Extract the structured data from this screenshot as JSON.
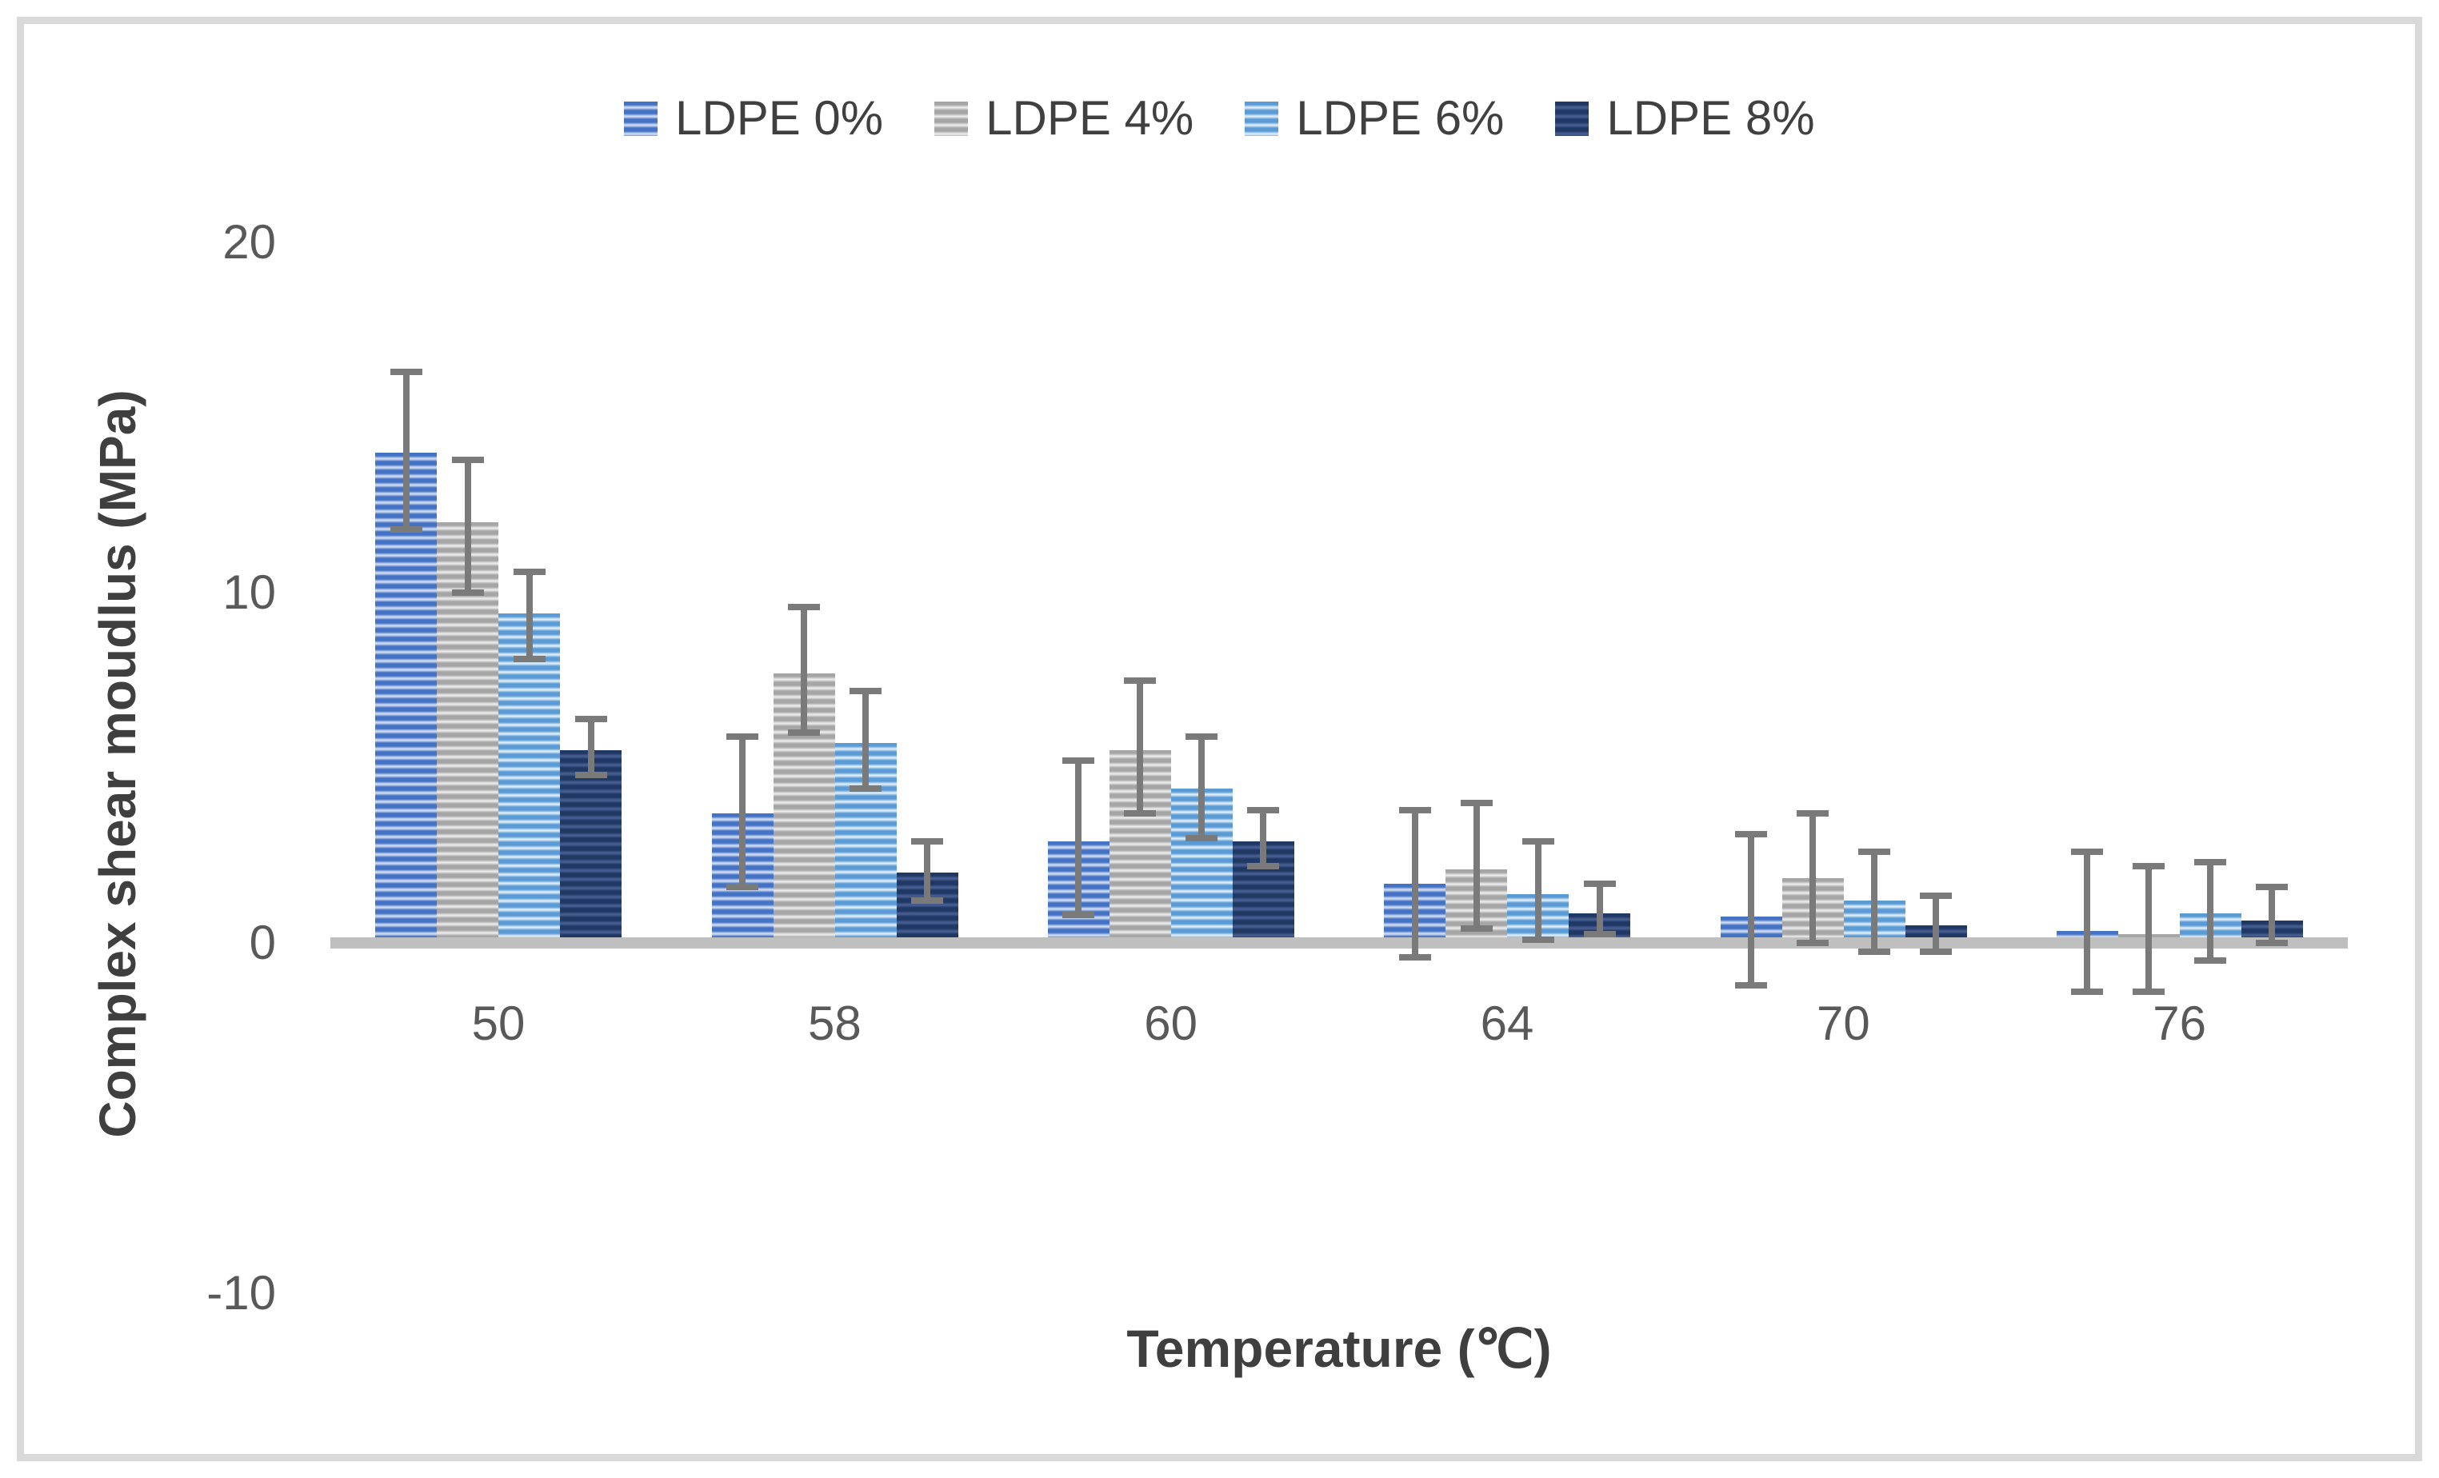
{
  "figure": {
    "background": "#ffffff",
    "border_color": "#d9d9d9"
  },
  "chart_data": {
    "type": "bar",
    "title": "",
    "xlabel": "Temperature (℃)",
    "ylabel": "Complex shear moudlus (MPa)",
    "categories": [
      "50",
      "58",
      "60",
      "64",
      "70",
      "76"
    ],
    "y_ticks": [
      "20",
      "10",
      "0",
      "-10"
    ],
    "y_tick_values": [
      20,
      10,
      0,
      -10
    ],
    "ylim": [
      -10,
      20
    ],
    "grid": false,
    "legend_position": "top",
    "axis_line_color": "#bfbfbf",
    "error_bar_color": "#7a7a7a",
    "series": [
      {
        "name": "LDPE 0%",
        "color": "#4472C4",
        "stripe_light": "#cdd9f1",
        "values": [
          14.0,
          3.7,
          2.9,
          1.7,
          0.75,
          0.35
        ],
        "err_low": [
          11.8,
          1.6,
          0.8,
          -0.4,
          -1.2,
          -1.4
        ],
        "err_high": [
          16.3,
          5.9,
          5.2,
          3.8,
          3.1,
          2.6
        ]
      },
      {
        "name": "LDPE 4%",
        "color": "#A6A6A6",
        "stripe_light": "#e8e8e8",
        "values": [
          12.0,
          7.7,
          5.5,
          2.1,
          1.85,
          0.25
        ],
        "err_low": [
          10.0,
          6.0,
          3.7,
          0.4,
          0.0,
          -1.4
        ],
        "err_high": [
          13.8,
          9.6,
          7.5,
          4.0,
          3.7,
          2.2
        ]
      },
      {
        "name": "LDPE 6%",
        "color": "#5B9BD5",
        "stripe_light": "#daeaf7",
        "values": [
          9.4,
          5.7,
          4.4,
          1.4,
          1.2,
          0.85
        ],
        "err_low": [
          8.1,
          4.4,
          3.0,
          0.1,
          -0.25,
          -0.5
        ],
        "err_high": [
          10.6,
          7.2,
          5.9,
          2.9,
          2.6,
          2.3
        ]
      },
      {
        "name": "LDPE 8%",
        "color": "#203864",
        "stripe_light": "#475d92",
        "values": [
          5.5,
          2.0,
          2.9,
          0.85,
          0.5,
          0.65
        ],
        "err_low": [
          4.8,
          1.2,
          2.2,
          0.25,
          -0.25,
          0.0
        ],
        "err_high": [
          6.4,
          2.9,
          3.8,
          1.7,
          1.35,
          1.6
        ]
      }
    ]
  }
}
